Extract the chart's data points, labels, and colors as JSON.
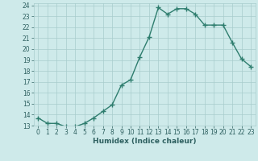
{
  "x": [
    0,
    1,
    2,
    3,
    4,
    5,
    6,
    7,
    8,
    9,
    10,
    11,
    12,
    13,
    14,
    15,
    16,
    17,
    18,
    19,
    20,
    21,
    22,
    23
  ],
  "y": [
    13.7,
    13.2,
    13.2,
    12.9,
    12.9,
    13.2,
    13.7,
    14.3,
    14.9,
    16.7,
    17.2,
    19.3,
    21.1,
    23.8,
    23.2,
    23.7,
    23.7,
    23.2,
    22.2,
    22.2,
    22.2,
    20.6,
    19.1,
    18.4
  ],
  "line_color": "#2e7d6e",
  "marker": "+",
  "marker_size": 4,
  "bg_color": "#ceeaea",
  "grid_color": "#a8cccc",
  "xlabel": "Humidex (Indice chaleur)",
  "xlim": [
    -0.5,
    23.5
  ],
  "ylim": [
    13,
    24.2
  ],
  "yticks": [
    13,
    14,
    15,
    16,
    17,
    18,
    19,
    20,
    21,
    22,
    23,
    24
  ],
  "xticks": [
    0,
    1,
    2,
    3,
    4,
    5,
    6,
    7,
    8,
    9,
    10,
    11,
    12,
    13,
    14,
    15,
    16,
    17,
    18,
    19,
    20,
    21,
    22,
    23
  ],
  "tick_color": "#2e6060",
  "label_color": "#2e6060",
  "tick_fontsize": 5.5,
  "xlabel_fontsize": 6.5,
  "linewidth": 1.0,
  "marker_color": "#2e7d6e"
}
